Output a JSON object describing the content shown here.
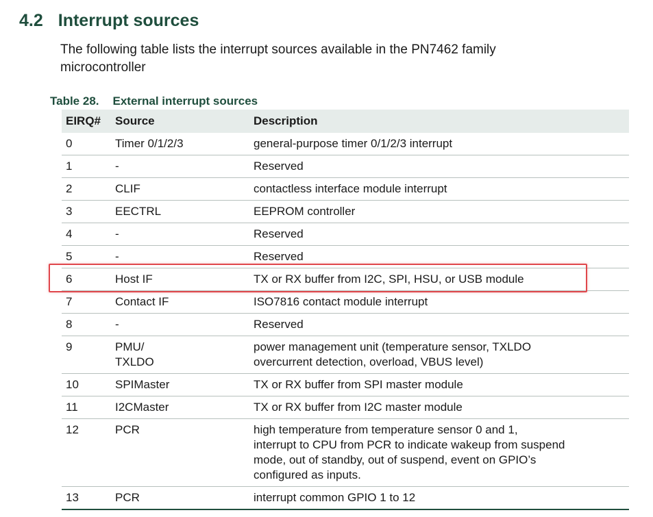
{
  "section": {
    "number": "4.2",
    "title": "Interrupt sources"
  },
  "intro": "The following table lists the interrupt sources available in the PN7462 family microcontroller",
  "table": {
    "caption_number": "Table 28.",
    "caption_title": "External interrupt sources",
    "headers": [
      "EIRQ#",
      "Source",
      "Description"
    ],
    "rows": [
      {
        "eirq": "0",
        "source": [
          "Timer 0/1/2/3"
        ],
        "desc": [
          "general-purpose timer 0/1/2/3 interrupt"
        ]
      },
      {
        "eirq": "1",
        "source": [
          "-"
        ],
        "desc": [
          "Reserved"
        ]
      },
      {
        "eirq": "2",
        "source": [
          "CLIF"
        ],
        "desc": [
          "contactless interface module interrupt"
        ]
      },
      {
        "eirq": "3",
        "source": [
          "EECTRL"
        ],
        "desc": [
          "EEPROM controller"
        ]
      },
      {
        "eirq": "4",
        "source": [
          "-"
        ],
        "desc": [
          "Reserved"
        ]
      },
      {
        "eirq": "5",
        "source": [
          "-"
        ],
        "desc": [
          "Reserved"
        ]
      },
      {
        "eirq": "6",
        "source": [
          "Host IF"
        ],
        "desc": [
          "TX or RX buffer from I2C, SPI, HSU, or USB module"
        ]
      },
      {
        "eirq": "7",
        "source": [
          "Contact IF"
        ],
        "desc": [
          "ISO7816 contact module interrupt"
        ]
      },
      {
        "eirq": "8",
        "source": [
          "-"
        ],
        "desc": [
          "Reserved"
        ]
      },
      {
        "eirq": "9",
        "source": [
          "PMU/",
          "TXLDO"
        ],
        "desc": [
          "power management unit (temperature sensor, TXLDO",
          "overcurrent detection, overload, VBUS level)"
        ]
      },
      {
        "eirq": "10",
        "source": [
          "SPIMaster"
        ],
        "desc": [
          "TX or RX buffer from SPI master module"
        ]
      },
      {
        "eirq": "11",
        "source": [
          "I2CMaster"
        ],
        "desc": [
          "TX or RX buffer from I2C master module"
        ]
      },
      {
        "eirq": "12",
        "source": [
          "PCR"
        ],
        "desc": [
          "high temperature from temperature sensor 0 and 1,",
          "interrupt to CPU from PCR to indicate wakeup from suspend",
          "mode, out of standby, out of suspend, event on GPIO’s",
          "configured as inputs."
        ]
      },
      {
        "eirq": "13",
        "source": [
          "PCR"
        ],
        "desc": [
          "interrupt common GPIO 1 to 12"
        ]
      }
    ]
  },
  "colors": {
    "heading": "#1f4e3d",
    "highlight": "#e0474c",
    "header_bg": "#e6ecea"
  }
}
